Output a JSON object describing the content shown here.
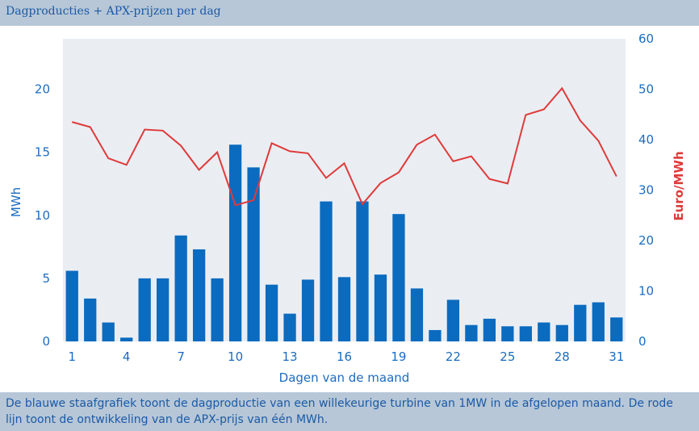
{
  "title": "Dagproducties + APX-prijzen per dag",
  "caption": "De blauwe staafgrafiek toont de dagproductie van een willekeurige turbine van 1MW in de afgelopen maand. De rode lijn toont de ontwikkeling van de APX-prijs van één MWh.",
  "colors": {
    "bars": "#0b6bbf",
    "line": "#e03a3a",
    "left_axis_text": "#1b6cc0",
    "right_axis_text": "#e03a3a",
    "chart_bg": "#eaeef3",
    "header_bg": "#b7c7d7"
  },
  "chart_data": {
    "type": "bar+line",
    "title": "Dagproducties + APX-prijzen per dag",
    "xlabel": "Dagen van de maand",
    "ylabel_left": "MWh",
    "ylabel_right": "Euro/MWh",
    "ylim_left": [
      0,
      24
    ],
    "ylim_right": [
      0,
      60
    ],
    "yticks_left": [
      0,
      5,
      10,
      15,
      20
    ],
    "yticks_right": [
      0,
      10,
      20,
      30,
      40,
      50,
      60
    ],
    "xticks": [
      1,
      4,
      7,
      10,
      13,
      16,
      19,
      22,
      25,
      28,
      31
    ],
    "grid": false,
    "categories": [
      1,
      2,
      3,
      4,
      5,
      6,
      7,
      8,
      9,
      10,
      11,
      12,
      13,
      14,
      15,
      16,
      17,
      18,
      19,
      20,
      21,
      22,
      23,
      24,
      25,
      26,
      27,
      28,
      29,
      30,
      31
    ],
    "series": [
      {
        "name": "Dagproductie (MWh)",
        "type": "bar",
        "axis": "left",
        "values": [
          5.6,
          3.4,
          1.5,
          0.3,
          5.0,
          5.0,
          8.4,
          7.3,
          5.0,
          15.6,
          13.8,
          4.5,
          2.2,
          4.9,
          11.1,
          5.1,
          11.1,
          5.3,
          10.1,
          4.2,
          0.9,
          3.3,
          1.3,
          1.8,
          1.2,
          1.2,
          1.5,
          1.3,
          2.9,
          3.1,
          1.9
        ]
      },
      {
        "name": "APX-prijs (Euro/MWh)",
        "type": "line",
        "axis": "right",
        "values": [
          43.5,
          42.5,
          36.3,
          35.0,
          42.0,
          41.8,
          38.8,
          34.0,
          37.5,
          27.0,
          28.0,
          39.3,
          37.7,
          37.3,
          32.4,
          35.3,
          27.2,
          31.4,
          33.5,
          39.0,
          41.0,
          35.7,
          36.7,
          32.2,
          31.3,
          44.9,
          46.0,
          50.2,
          43.8,
          39.8,
          32.7
        ]
      }
    ]
  }
}
